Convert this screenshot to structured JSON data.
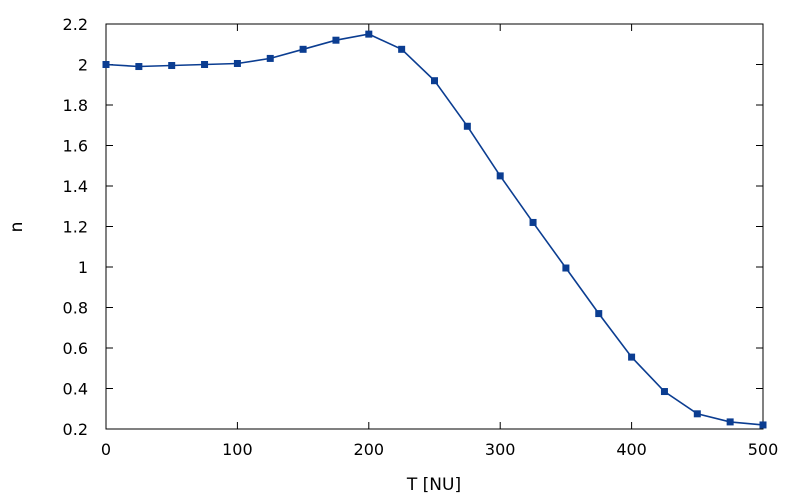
{
  "chart_data": {
    "type": "line",
    "title": "",
    "xlabel": "T [NU]",
    "ylabel": "n",
    "xlim": [
      0,
      500
    ],
    "ylim": [
      0.2,
      2.2
    ],
    "xticks": [
      0,
      100,
      200,
      300,
      400,
      500
    ],
    "yticks": [
      0.2,
      0.4,
      0.6,
      0.8,
      1,
      1.2,
      1.4,
      1.6,
      1.8,
      2,
      2.2
    ],
    "grid": false,
    "legend": "none",
    "series": [
      {
        "color": "#0b3d91",
        "marker": "square",
        "x": [
          0,
          25,
          50,
          75,
          100,
          125,
          150,
          175,
          200,
          225,
          250,
          275,
          300,
          325,
          350,
          375,
          400,
          425,
          450,
          475,
          500
        ],
        "y": [
          2.0,
          1.99,
          1.995,
          2.0,
          2.005,
          2.03,
          2.075,
          2.12,
          2.15,
          2.075,
          1.92,
          1.695,
          1.45,
          1.22,
          0.995,
          0.77,
          0.555,
          0.385,
          0.275,
          0.235,
          0.22
        ]
      }
    ]
  }
}
